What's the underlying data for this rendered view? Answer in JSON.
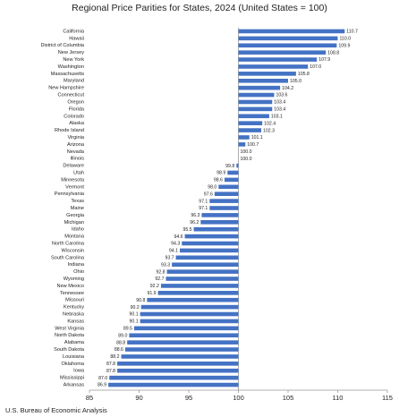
{
  "chart_data": {
    "type": "hbar",
    "title": "Regional Price Parities for States, 2024 (United States = 100)",
    "source": "U.S. Bureau of Economic Analysis",
    "categories": [
      "California",
      "Hawaii",
      "District of Columbia",
      "New Jersey",
      "New York",
      "Washington",
      "Massachusetts",
      "Maryland",
      "New Hampshire",
      "Connecticut",
      "Oregon",
      "Florida",
      "Colorado",
      "Alaska",
      "Rhode Island",
      "Virginia",
      "Arizona",
      "Nevada",
      "Illinois",
      "Delaware",
      "Utah",
      "Minnesota",
      "Vermont",
      "Pennsylvania",
      "Texas",
      "Maine",
      "Georgia",
      "Michigan",
      "Idaho",
      "Montana",
      "North Carolina",
      "Wisconsin",
      "South Carolina",
      "Indiana",
      "Ohio",
      "Wyoming",
      "New Mexico",
      "Tennessee",
      "Missouri",
      "Kentucky",
      "Nebraska",
      "Kansas",
      "West Virginia",
      "North Dakota",
      "Alabama",
      "South Dakota",
      "Louisiana",
      "Oklahoma",
      "Iowa",
      "Mississippi",
      "Arkansas"
    ],
    "values": [
      110.7,
      110.0,
      109.9,
      108.8,
      107.9,
      107.0,
      105.8,
      105.0,
      104.2,
      103.6,
      103.4,
      103.4,
      103.1,
      102.4,
      102.3,
      101.1,
      100.7,
      100.0,
      100.0,
      99.8,
      98.9,
      98.6,
      98.0,
      97.6,
      97.1,
      97.1,
      96.3,
      96.2,
      95.5,
      94.6,
      94.3,
      94.1,
      93.7,
      93.3,
      92.8,
      92.7,
      92.2,
      91.9,
      90.8,
      90.2,
      90.1,
      90.1,
      89.5,
      89.0,
      88.8,
      88.6,
      88.2,
      87.8,
      87.8,
      87.0,
      86.9
    ],
    "value_labels": [
      "110.7",
      "110.0",
      "109.9",
      "108.8",
      "107.9",
      "107.0",
      "105.8",
      "105.0",
      "104.2",
      "103.6",
      "103.4",
      "103.4",
      "103.1",
      "102.4",
      "102.3",
      "101.1",
      "100.7",
      "100.0",
      "100.0",
      "99.8",
      "98.9",
      "98.6",
      "98.0",
      "97.6",
      "97.1",
      "97.1",
      "96.3",
      "96.2",
      "95.5",
      "94.6",
      "94.3",
      "94.1",
      "93.7",
      "93.3",
      "92.8",
      "92.7",
      "92.2",
      "91.9",
      "90.8",
      "90.2",
      "90.1",
      "90.1",
      "89.5",
      "89.0",
      "88.8",
      "88.6",
      "88.2",
      "87.8",
      "87.8",
      "87.0",
      "86.9"
    ],
    "color": "#4472c4",
    "baseline": 100,
    "xlim": [
      85,
      115
    ],
    "xticks": [
      85,
      90,
      95,
      100,
      105,
      110,
      115
    ]
  }
}
